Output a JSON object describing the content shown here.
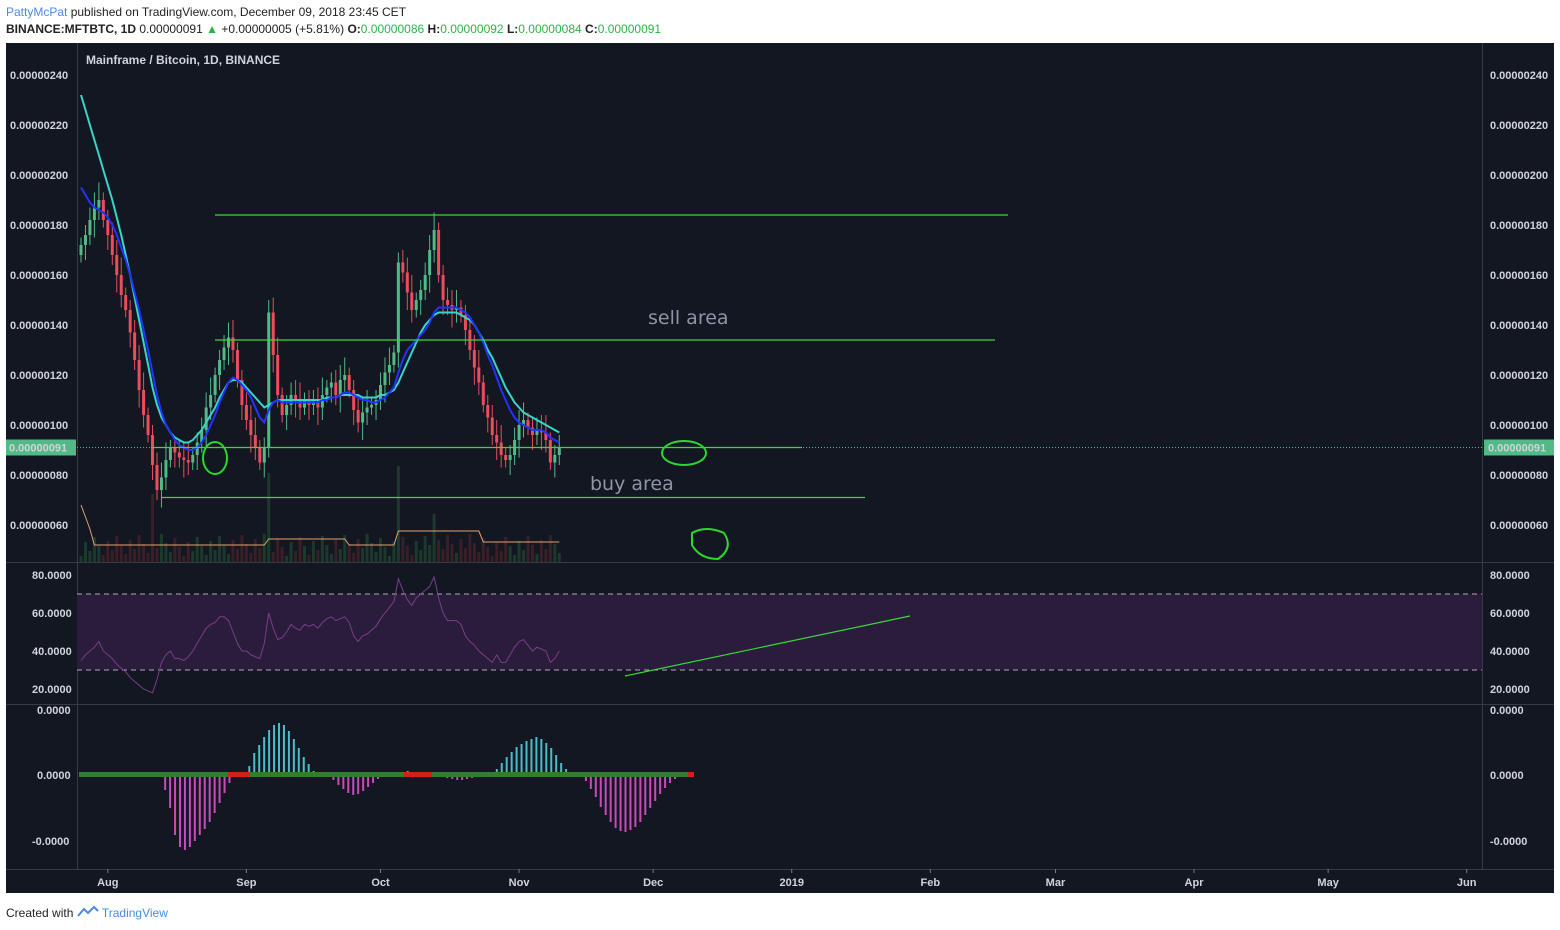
{
  "header": {
    "author": "PattyMcPat",
    "published": "published on TradingView.com, December 09, 2018 23:45 CET",
    "symbol": "BINANCE:MFTBTC, 1D",
    "last": "0.00000091",
    "change": "+0.00000005 (+5.81%)",
    "o_label": "O:",
    "o": "0.00000086",
    "h_label": "H:",
    "h": "0.00000092",
    "l_label": "L:",
    "l": "0.00000084",
    "c_label": "C:",
    "c": "0.00000091"
  },
  "footer": {
    "prefix": "Created with",
    "brand": "TradingView"
  },
  "chart_data": {
    "type": "candlestick",
    "title": "Mainframe / Bitcoin, 1D, BINANCE",
    "x_ticks": [
      "Aug",
      "Sep",
      "Oct",
      "Nov",
      "Dec",
      "2019",
      "Feb",
      "Mar",
      "Apr",
      "May",
      "Jun"
    ],
    "start_date": "2018-07-26",
    "price_axis": {
      "ticks": [
        "0.00000240",
        "0.00000220",
        "0.00000200",
        "0.00000180",
        "0.00000160",
        "0.00000140",
        "0.00000120",
        "0.00000100",
        "0.00000080",
        "0.00000060"
      ],
      "tick_values": [
        240,
        220,
        200,
        180,
        160,
        140,
        120,
        100,
        80,
        60
      ],
      "current_label": "0.00000091",
      "current_value": 91,
      "unit_scale": "1e-8 BTC"
    },
    "price_series": {
      "closes": [
        172,
        176,
        182,
        187,
        190,
        182,
        176,
        168,
        160,
        152,
        146,
        137,
        126,
        114,
        104,
        96,
        84,
        74,
        79,
        86,
        91,
        89,
        87,
        86,
        85,
        88,
        93,
        98,
        107,
        112,
        120,
        126,
        131,
        135,
        130,
        118,
        108,
        102,
        96,
        91,
        85,
        91,
        145,
        128,
        112,
        104,
        108,
        112,
        110,
        107,
        110,
        108,
        109,
        107,
        112,
        115,
        117,
        112,
        118,
        120,
        114,
        106,
        101,
        105,
        107,
        108,
        110,
        116,
        121,
        124,
        129,
        165,
        161,
        153,
        146,
        150,
        154,
        160,
        170,
        178,
        160,
        150,
        148,
        146,
        147,
        144,
        138,
        130,
        123,
        117,
        108,
        103,
        96,
        93,
        88,
        86,
        88,
        94,
        100,
        102,
        99,
        96,
        98,
        97,
        94,
        85,
        88,
        91
      ],
      "ema_fast": [
        195,
        192,
        189,
        187,
        186,
        185,
        183,
        180,
        176,
        171,
        166,
        160,
        153,
        146,
        138,
        130,
        121,
        112,
        105,
        100,
        97,
        94,
        92,
        91,
        90,
        90,
        91,
        93,
        96,
        100,
        104,
        109,
        113,
        117,
        119,
        118,
        116,
        114,
        111,
        107,
        103,
        101,
        106,
        109,
        110,
        109,
        109,
        109,
        109,
        109,
        109,
        109,
        109,
        109,
        110,
        110,
        111,
        111,
        112,
        113,
        113,
        112,
        111,
        110,
        110,
        109,
        109,
        110,
        111,
        113,
        115,
        121,
        126,
        130,
        132,
        134,
        136,
        138,
        141,
        145,
        147,
        147,
        147,
        147,
        147,
        146,
        145,
        143,
        140,
        137,
        133,
        128,
        124,
        119,
        114,
        110,
        106,
        103,
        101,
        100,
        99,
        98,
        98,
        98,
        97,
        95,
        94,
        93
      ],
      "ema_slow": [
        232,
        226,
        220,
        214,
        208,
        202,
        196,
        190,
        183,
        176,
        168,
        160,
        151,
        142,
        133,
        124,
        115,
        108,
        103,
        100,
        97,
        95,
        94,
        93,
        93,
        94,
        96,
        98,
        101,
        104,
        107,
        111,
        114,
        117,
        118,
        118,
        117,
        115,
        113,
        111,
        109,
        107,
        108,
        109,
        110,
        110,
        110,
        110,
        110,
        110,
        110,
        110,
        110,
        110,
        110,
        111,
        111,
        111,
        112,
        112,
        112,
        112,
        112,
        111,
        111,
        111,
        111,
        112,
        112,
        113,
        114,
        117,
        121,
        125,
        129,
        133,
        137,
        140,
        142,
        144,
        145,
        145,
        145,
        145,
        145,
        144,
        143,
        142,
        140,
        137,
        134,
        130,
        127,
        123,
        119,
        115,
        112,
        109,
        107,
        105,
        104,
        103,
        102,
        101,
        100,
        99,
        98,
        97
      ]
    },
    "horizontal_lines": [
      184,
      134,
      91,
      71
    ],
    "annotations": [
      "sell area",
      "buy area"
    ],
    "rsi": {
      "ticks": [
        "80.0000",
        "60.0000",
        "40.0000",
        "20.0000"
      ],
      "tick_values": [
        80,
        60,
        40,
        20
      ],
      "band": [
        30,
        70
      ],
      "values": [
        35,
        38,
        40,
        42,
        45,
        40,
        38,
        36,
        33,
        31,
        29,
        26,
        24,
        22,
        20,
        19,
        18,
        25,
        34,
        38,
        40,
        36,
        36,
        35,
        37,
        40,
        44,
        48,
        52,
        54,
        55,
        58,
        58,
        56,
        50,
        44,
        40,
        40,
        38,
        37,
        36,
        44,
        60,
        52,
        46,
        47,
        50,
        54,
        52,
        51,
        54,
        53,
        54,
        52,
        55,
        57,
        58,
        56,
        57,
        58,
        55,
        48,
        45,
        48,
        49,
        51,
        53,
        57,
        60,
        63,
        66,
        78,
        72,
        67,
        64,
        68,
        70,
        72,
        74,
        79,
        68,
        60,
        56,
        56,
        56,
        54,
        48,
        45,
        43,
        40,
        38,
        36,
        34,
        38,
        34,
        34,
        38,
        42,
        45,
        46,
        43,
        40,
        42,
        41,
        40,
        34,
        36,
        40
      ]
    },
    "macd": {
      "ticks": [
        "0.0000",
        "0.0000",
        "-0.0000"
      ],
      "values": [
        0,
        0,
        0,
        0,
        0,
        0,
        0,
        0,
        0,
        0,
        0,
        0,
        0,
        0,
        0,
        0,
        0,
        -15,
        -33,
        -60,
        -72,
        -75,
        -72,
        -66,
        -60,
        -54,
        -47,
        -38,
        -28,
        -18,
        -8,
        0,
        0,
        0,
        9,
        22,
        30,
        38,
        45,
        50,
        52,
        50,
        44,
        36,
        27,
        18,
        11,
        4,
        0,
        0,
        0,
        -5,
        -10,
        -14,
        -18,
        -20,
        -19,
        -16,
        -12,
        -8,
        -4,
        0,
        0,
        0,
        0,
        3,
        4,
        3,
        0,
        0,
        0,
        0,
        0,
        -2,
        -3,
        -4,
        -5,
        -5,
        -4,
        -3,
        -2,
        0,
        0,
        0,
        6,
        12,
        18,
        23,
        28,
        31,
        34,
        36,
        38,
        36,
        32,
        27,
        20,
        12,
        6,
        0,
        0,
        0,
        -6,
        -14,
        -22,
        -32,
        -40,
        -47,
        -53,
        -56,
        -57,
        -55,
        -52,
        -47,
        -40,
        -33,
        -26,
        -19,
        -13,
        -8,
        -4,
        -2,
        0
      ]
    }
  },
  "colors": {
    "bg": "#131722",
    "up": "#53b987",
    "down": "#eb4d5c",
    "ema_fast": "#2232ff",
    "ema_slow": "#37d6c8",
    "hline": "#3bd93b",
    "volume_ma": "#e0a070",
    "rsi_line": "#7e3a8c",
    "rsi_band": "#2a1d3b",
    "macd_pos": "#4bbcc8",
    "macd_neg": "#c84bb9",
    "signal": "#2f7f2f"
  }
}
